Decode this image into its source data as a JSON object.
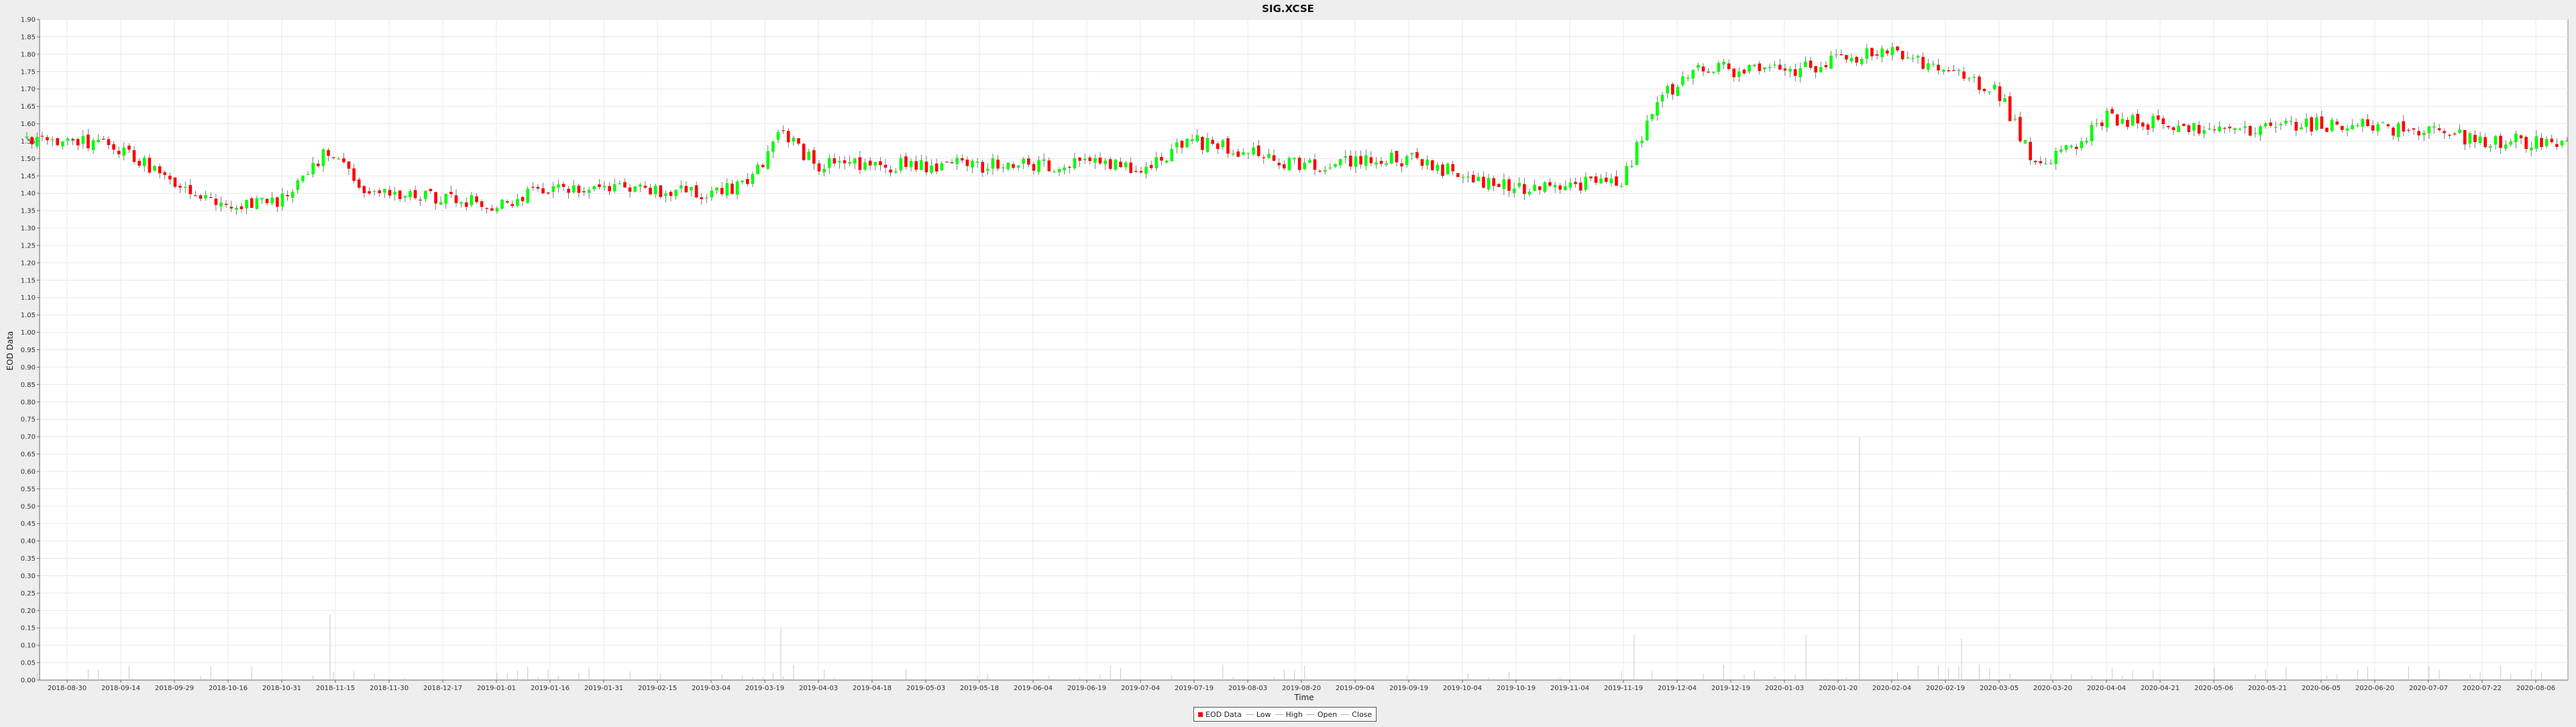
{
  "colors": {
    "background": "#eeeeee",
    "plot_background": "#ffffff",
    "gridline": "#e8e8e8",
    "up_candle": "#00ff00",
    "down_candle": "#ff0000",
    "wick": "#000000",
    "volume": "#c8c8c8"
  },
  "chart_data": {
    "type": "candlestick",
    "title": "SIG.XCSE",
    "xlabel": "Time",
    "ylabel": "EOD Data",
    "ylim": [
      0,
      1.9
    ],
    "y_ticks": [
      "0.00",
      "0.05",
      "0.10",
      "0.15",
      "0.20",
      "0.25",
      "0.30",
      "0.35",
      "0.40",
      "0.45",
      "0.50",
      "0.55",
      "0.60",
      "0.65",
      "0.70",
      "0.75",
      "0.80",
      "0.85",
      "0.90",
      "0.95",
      "1.00",
      "1.05",
      "1.10",
      "1.15",
      "1.20",
      "1.25",
      "1.30",
      "1.35",
      "1.40",
      "1.45",
      "1.50",
      "1.55",
      "1.60",
      "1.65",
      "1.70",
      "1.75",
      "1.80",
      "1.85",
      "1.90"
    ],
    "x_ticks": [
      "2018-08-30",
      "2018-09-14",
      "2018-09-29",
      "2018-10-16",
      "2018-10-31",
      "2018-11-15",
      "2018-11-30",
      "2018-12-17",
      "2019-01-01",
      "2019-01-16",
      "2019-01-31",
      "2019-02-15",
      "2019-03-04",
      "2019-03-19",
      "2019-04-03",
      "2019-04-18",
      "2019-05-03",
      "2019-05-18",
      "2019-06-04",
      "2019-06-19",
      "2019-07-04",
      "2019-07-19",
      "2019-08-03",
      "2019-08-20",
      "2019-09-04",
      "2019-09-19",
      "2019-10-04",
      "2019-10-19",
      "2019-11-04",
      "2019-11-19",
      "2019-12-04",
      "2019-12-19",
      "2020-01-03",
      "2020-01-20",
      "2020-02-04",
      "2020-02-19",
      "2020-03-05",
      "2020-03-20",
      "2020-04-04",
      "2020-04-21",
      "2020-05-06",
      "2020-05-21",
      "2020-06-05",
      "2020-06-20",
      "2020-07-07",
      "2020-07-22",
      "2020-08-06"
    ],
    "legend": {
      "position": "bottom-center",
      "items": [
        "EOD Data",
        "Low",
        "High",
        "Open",
        "Close"
      ]
    },
    "grid": true,
    "price_keyframes": [
      {
        "x": 0.0,
        "y": 1.56
      },
      {
        "x": 1.0,
        "y": 1.52
      },
      {
        "x": 2.0,
        "y": 1.44
      },
      {
        "x": 3.0,
        "y": 1.37
      },
      {
        "x": 4.0,
        "y": 1.38
      },
      {
        "x": 4.8,
        "y": 1.52
      },
      {
        "x": 5.5,
        "y": 1.42
      },
      {
        "x": 7.0,
        "y": 1.38
      },
      {
        "x": 8.0,
        "y": 1.37
      },
      {
        "x": 9.0,
        "y": 1.42
      },
      {
        "x": 12.0,
        "y": 1.4
      },
      {
        "x": 12.7,
        "y": 1.43
      },
      {
        "x": 13.3,
        "y": 1.57
      },
      {
        "x": 14.0,
        "y": 1.48
      },
      {
        "x": 20.0,
        "y": 1.48
      },
      {
        "x": 21.0,
        "y": 1.55
      },
      {
        "x": 23.0,
        "y": 1.48
      },
      {
        "x": 25.0,
        "y": 1.5
      },
      {
        "x": 27.0,
        "y": 1.41
      },
      {
        "x": 29.0,
        "y": 1.44
      },
      {
        "x": 29.6,
        "y": 1.66
      },
      {
        "x": 30.3,
        "y": 1.76
      },
      {
        "x": 32.0,
        "y": 1.75
      },
      {
        "x": 34.0,
        "y": 1.81
      },
      {
        "x": 35.0,
        "y": 1.75
      },
      {
        "x": 36.0,
        "y": 1.69
      },
      {
        "x": 36.7,
        "y": 1.47
      },
      {
        "x": 37.3,
        "y": 1.53
      },
      {
        "x": 38.0,
        "y": 1.62
      },
      {
        "x": 40.0,
        "y": 1.58
      },
      {
        "x": 42.0,
        "y": 1.6
      },
      {
        "x": 44.0,
        "y": 1.58
      },
      {
        "x": 45.0,
        "y": 1.55
      },
      {
        "x": 46.5,
        "y": 1.55
      }
    ],
    "volume_spikes": [
      {
        "x": 4.9,
        "v": 0.19
      },
      {
        "x": 13.3,
        "v": 0.15
      },
      {
        "x": 29.2,
        "v": 0.13
      },
      {
        "x": 32.4,
        "v": 0.13
      },
      {
        "x": 33.4,
        "v": 0.7
      },
      {
        "x": 35.3,
        "v": 0.12
      }
    ]
  }
}
